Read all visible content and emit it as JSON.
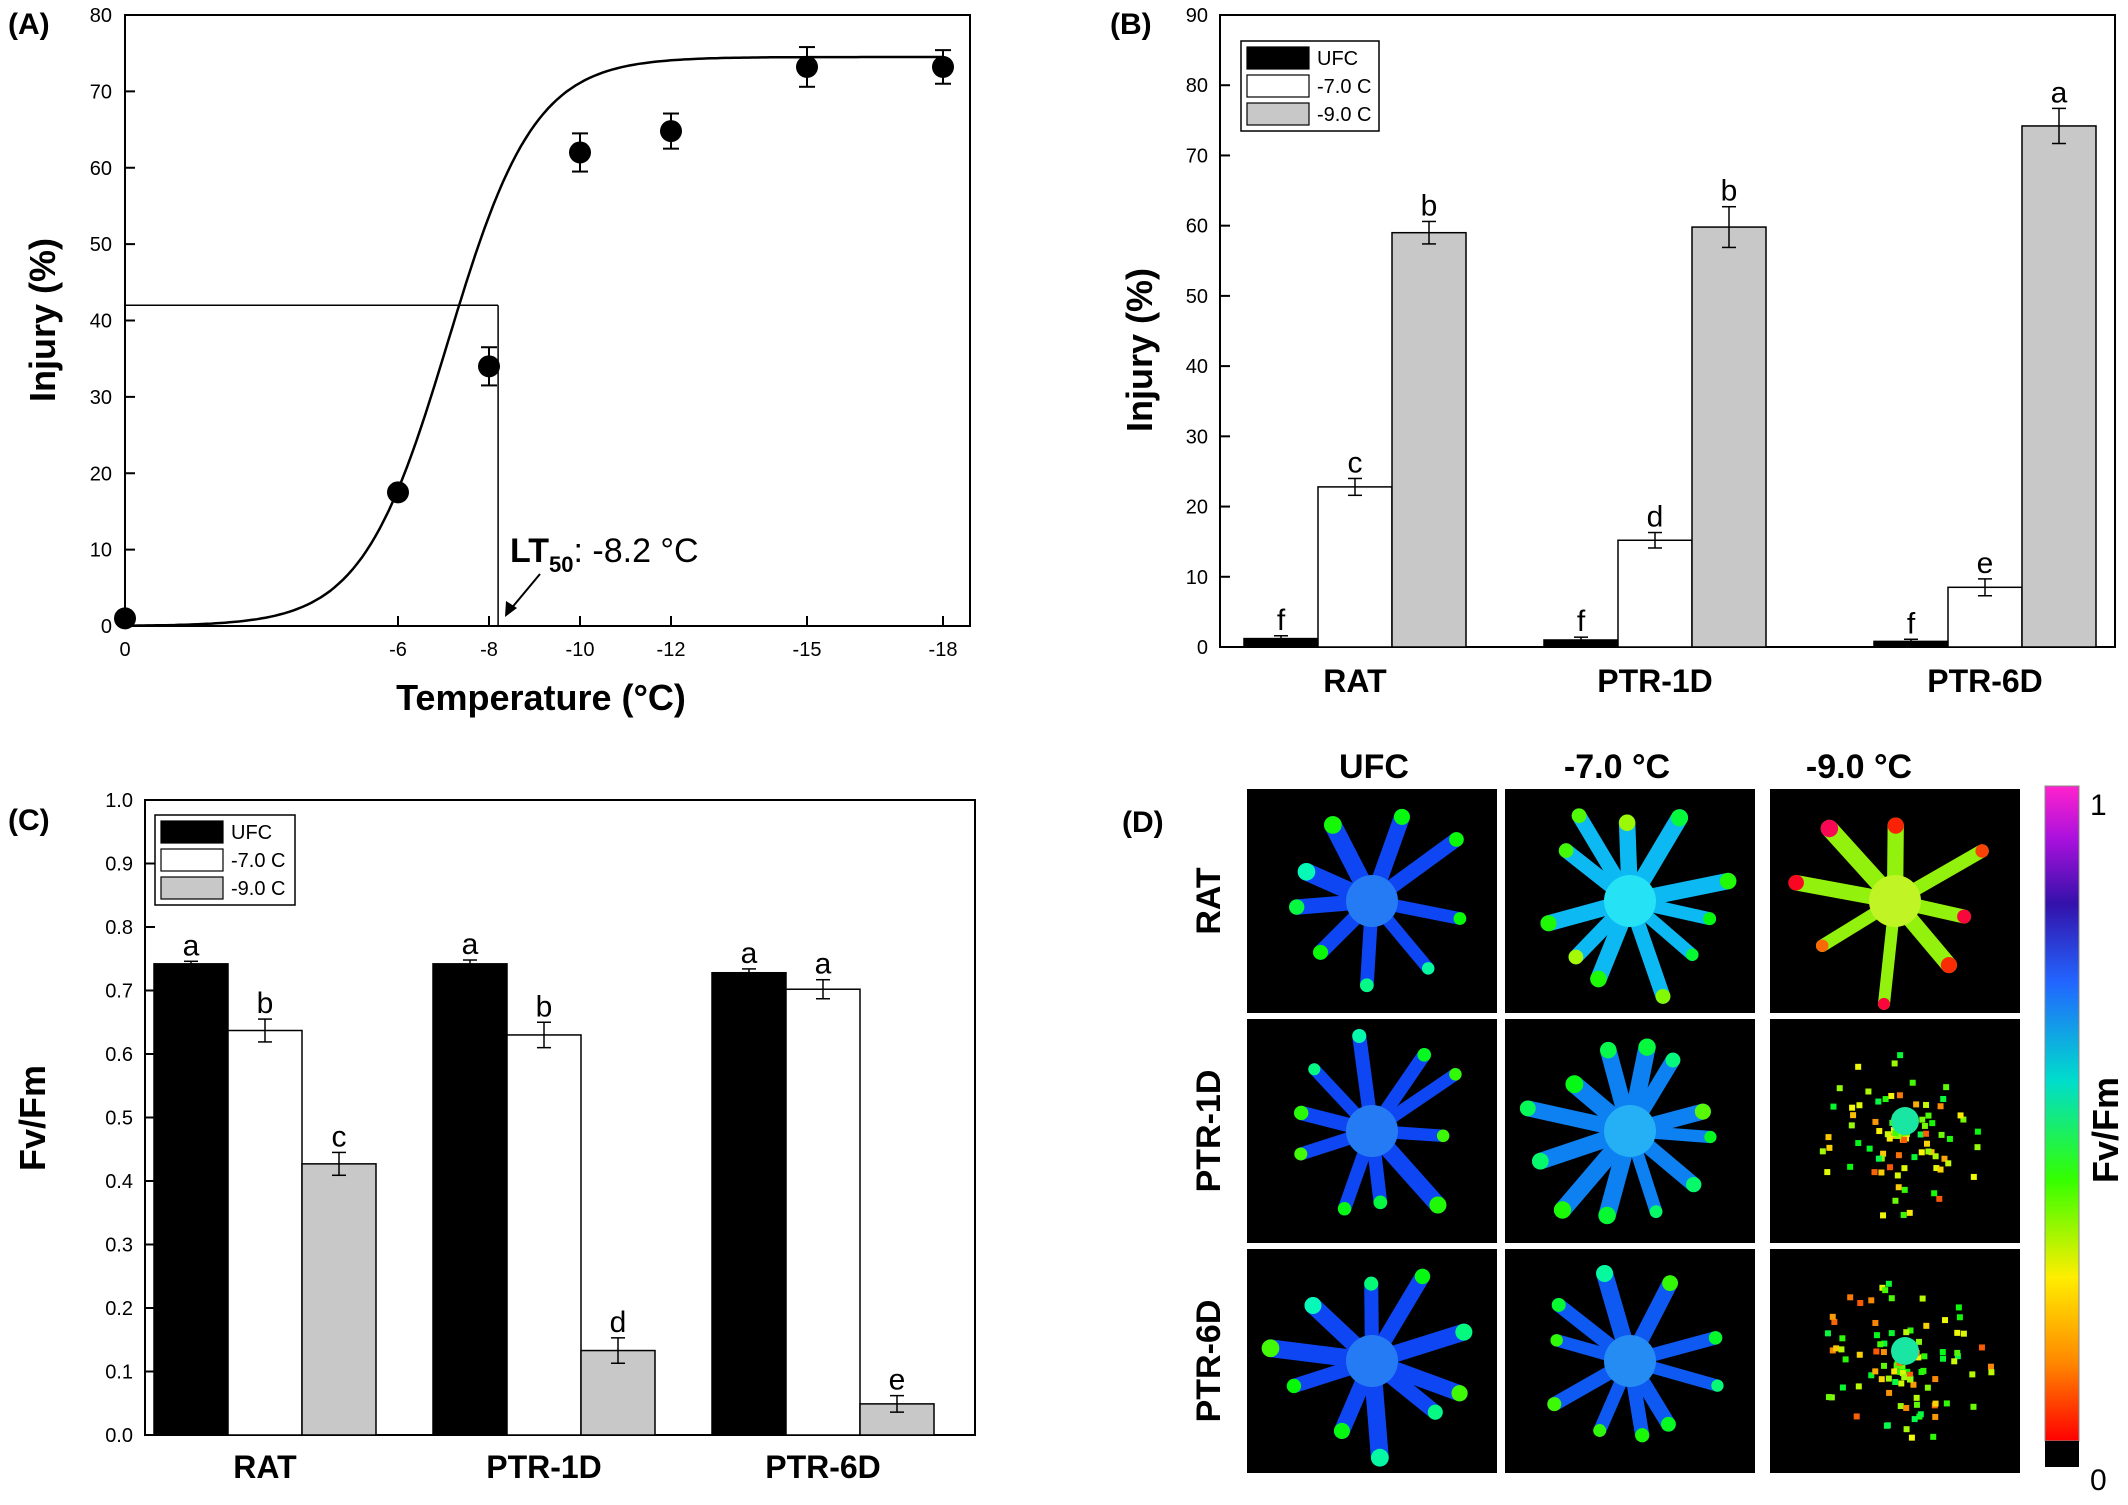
{
  "chart_data": [
    {
      "panel": "(A)",
      "type": "scatter",
      "xlabel": "Temperature (°C)",
      "ylabel": "Injury (%)",
      "x_ticks": [
        0,
        -6,
        -8,
        -10,
        -12,
        -15,
        -18
      ],
      "ylim": [
        0,
        80
      ],
      "y_ticks": [
        0,
        10,
        20,
        30,
        40,
        50,
        60,
        70,
        80
      ],
      "points": [
        {
          "x": 0,
          "y": 1,
          "err": 0
        },
        {
          "x": -6,
          "y": 17.5,
          "err": 0.8
        },
        {
          "x": -8,
          "y": 34,
          "err": 2.5
        },
        {
          "x": -10,
          "y": 62,
          "err": 2.5
        },
        {
          "x": -12,
          "y": 64.8,
          "err": 2.3
        },
        {
          "x": -15,
          "y": 73.2,
          "err": 2.6
        },
        {
          "x": -18,
          "y": 73.2,
          "err": 2.2
        }
      ],
      "fit": {
        "type": "sigmoid",
        "upper": 74.5,
        "midpoint": -7.1,
        "slope": 1.05
      },
      "guide": {
        "x": -8.2,
        "y": 42
      },
      "annotation": {
        "lt": "LT",
        "sub": "50",
        "text": ": -8.2 °C"
      }
    },
    {
      "panel": "(B)",
      "type": "bar",
      "ylabel": "Injury (%)",
      "categories": [
        "RAT",
        "PTR-1D",
        "PTR-6D"
      ],
      "ylim": [
        0,
        90
      ],
      "y_ticks": [
        0,
        10,
        20,
        30,
        40,
        50,
        60,
        70,
        80,
        90
      ],
      "legend_position": "top-left",
      "series": [
        {
          "name": "UFC",
          "color": "#000000",
          "values": [
            1.2,
            1.0,
            0.8
          ],
          "errors": [
            0.4,
            0.4,
            0.3
          ],
          "letters": [
            "f",
            "f",
            "f"
          ]
        },
        {
          "name": "-7.0 C",
          "color": "#ffffff",
          "values": [
            22.8,
            15.2,
            8.5
          ],
          "errors": [
            1.2,
            1.1,
            1.2
          ],
          "letters": [
            "c",
            "d",
            "e"
          ]
        },
        {
          "name": "-9.0 C",
          "color": "#c8c8c8",
          "values": [
            59.0,
            59.8,
            74.2
          ],
          "errors": [
            1.6,
            2.9,
            2.5
          ],
          "letters": [
            "b",
            "b",
            "a"
          ]
        }
      ]
    },
    {
      "panel": "(C)",
      "type": "bar",
      "ylabel": "Fv/Fm",
      "categories": [
        "RAT",
        "PTR-1D",
        "PTR-6D"
      ],
      "ylim": [
        0,
        1.0
      ],
      "y_ticks": [
        "0.0",
        "0.1",
        "0.2",
        "0.3",
        "0.4",
        "0.5",
        "0.6",
        "0.7",
        "0.8",
        "0.9",
        "1.0"
      ],
      "legend_position": "top-left",
      "series": [
        {
          "name": "UFC",
          "color": "#000000",
          "values": [
            0.742,
            0.742,
            0.728
          ],
          "errors": [
            0.004,
            0.006,
            0.006
          ],
          "letters": [
            "a",
            "a",
            "a"
          ]
        },
        {
          "name": "-7.0 C",
          "color": "#ffffff",
          "values": [
            0.637,
            0.63,
            0.702
          ],
          "errors": [
            0.018,
            0.02,
            0.015
          ],
          "letters": [
            "b",
            "b",
            "a"
          ]
        },
        {
          "name": "-9.0 C",
          "color": "#c8c8c8",
          "values": [
            0.427,
            0.133,
            0.049
          ],
          "errors": [
            0.018,
            0.02,
            0.013
          ],
          "letters": [
            "c",
            "d",
            "e"
          ]
        }
      ]
    },
    {
      "panel": "(D)",
      "type": "heatmap",
      "columns": [
        "UFC",
        "-7.0 °C",
        "-9.0 °C"
      ],
      "rows": [
        "RAT",
        "PTR-1D",
        "PTR-6D"
      ],
      "colorbar": {
        "label": "Fv/Fm",
        "min_label": "0",
        "max_label": "1"
      },
      "tiles": [
        {
          "row": "RAT",
          "col": "UFC",
          "mean_hue": 225,
          "arms": 9,
          "speckle": 0.1
        },
        {
          "row": "RAT",
          "col": "-7.0 °C",
          "mean_hue": 195,
          "arms": 11,
          "speckle": 0.4
        },
        {
          "row": "RAT",
          "col": "-9.0 °C",
          "mean_hue": 85,
          "arms": 8,
          "speckle": 0.3
        },
        {
          "row": "PTR-1D",
          "col": "UFC",
          "mean_hue": 225,
          "arms": 10,
          "speckle": 0.05
        },
        {
          "row": "PTR-1D",
          "col": "-7.0 °C",
          "mean_hue": 210,
          "arms": 12,
          "speckle": 0.1
        },
        {
          "row": "PTR-1D",
          "col": "-9.0 °C",
          "mean_hue": 50,
          "arms": 12,
          "speckle": 0.9
        },
        {
          "row": "PTR-6D",
          "col": "UFC",
          "mean_hue": 225,
          "arms": 10,
          "speckle": 0.05
        },
        {
          "row": "PTR-6D",
          "col": "-7.0 °C",
          "mean_hue": 220,
          "arms": 10,
          "speckle": 0.05
        },
        {
          "row": "PTR-6D",
          "col": "-9.0 °C",
          "mean_hue": 90,
          "arms": 6,
          "speckle": 1.0
        }
      ]
    }
  ]
}
